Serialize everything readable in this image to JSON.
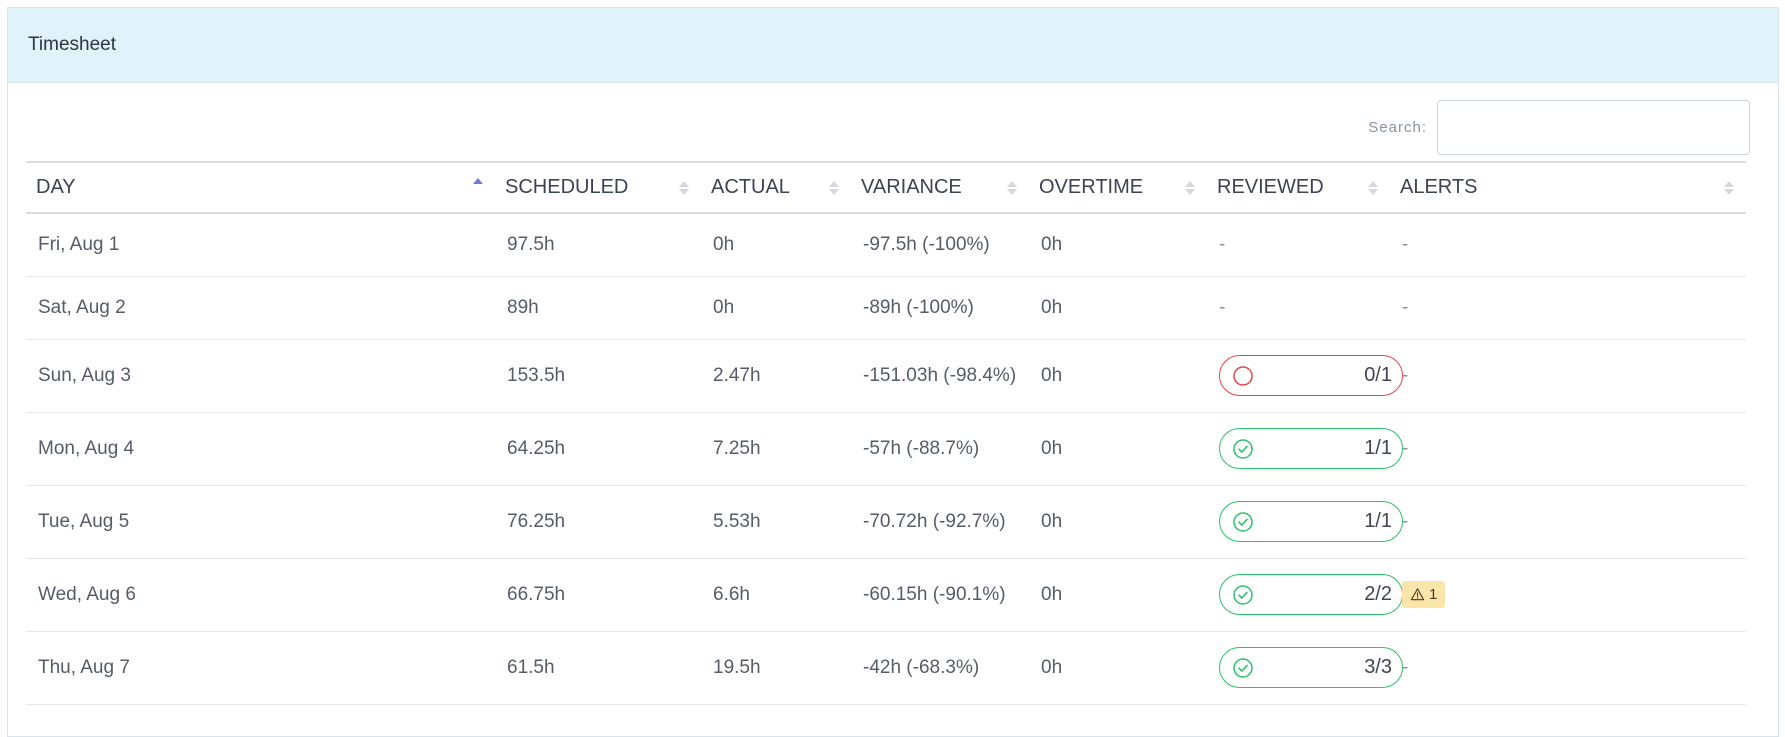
{
  "panel": {
    "title": "Timesheet"
  },
  "search": {
    "label": "Search:",
    "value": "",
    "placeholder": ""
  },
  "table": {
    "columns": [
      "DAY",
      "SCHEDULED",
      "ACTUAL",
      "VARIANCE",
      "OVERTIME",
      "REVIEWED",
      "ALERTS"
    ],
    "sorted_column": "DAY",
    "sort_direction": "asc",
    "rows": [
      {
        "day": "Fri, Aug 1",
        "scheduled": "97.5h",
        "actual": "0h",
        "variance": "-97.5h (-100%)",
        "overtime": "0h",
        "reviewed": "-",
        "reviewed_status": "none",
        "alerts": "-"
      },
      {
        "day": "Sat, Aug 2",
        "scheduled": "89h",
        "actual": "0h",
        "variance": "-89h (-100%)",
        "overtime": "0h",
        "reviewed": "-",
        "reviewed_status": "none",
        "alerts": "-"
      },
      {
        "day": "Sun, Aug 3",
        "scheduled": "153.5h",
        "actual": "2.47h",
        "variance": "-151.03h (-98.4%)",
        "overtime": "0h",
        "reviewed": "0/1",
        "reviewed_status": "incomplete",
        "alerts": "-"
      },
      {
        "day": "Mon, Aug 4",
        "scheduled": "64.25h",
        "actual": "7.25h",
        "variance": "-57h (-88.7%)",
        "overtime": "0h",
        "reviewed": "1/1",
        "reviewed_status": "complete",
        "alerts": "-"
      },
      {
        "day": "Tue, Aug 5",
        "scheduled": "76.25h",
        "actual": "5.53h",
        "variance": "-70.72h (-92.7%)",
        "overtime": "0h",
        "reviewed": "1/1",
        "reviewed_status": "complete",
        "alerts": "-"
      },
      {
        "day": "Wed, Aug 6",
        "scheduled": "66.75h",
        "actual": "6.6h",
        "variance": "-60.15h (-90.1%)",
        "overtime": "0h",
        "reviewed": "2/2",
        "reviewed_status": "complete",
        "alerts": "1",
        "alert_icon": "warning-icon"
      },
      {
        "day": "Thu, Aug 7",
        "scheduled": "61.5h",
        "actual": "19.5h",
        "variance": "-42h (-68.3%)",
        "overtime": "0h",
        "reviewed": "3/3",
        "reviewed_status": "complete",
        "alerts": "-"
      }
    ]
  },
  "colors": {
    "header_bg": "#e1f3fa",
    "reviewed_complete": "#2cc26a",
    "reviewed_incomplete": "#e0464b",
    "alert_badge": "#fbe5a9",
    "sort_active": "#6f7cd8"
  }
}
